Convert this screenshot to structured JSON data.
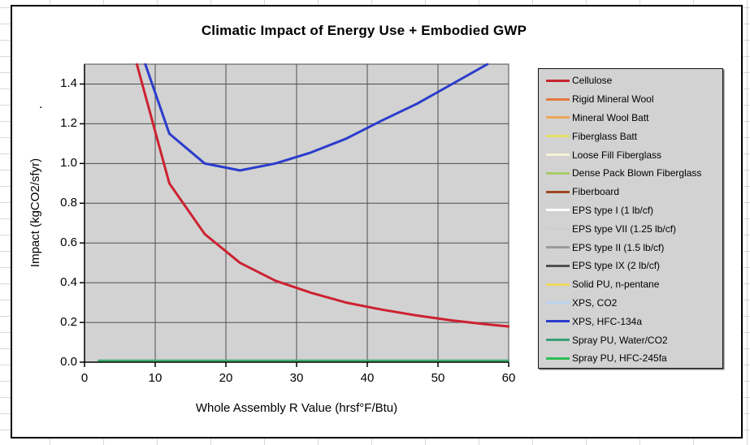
{
  "chart": {
    "title": "Climatic Impact of Energy Use + Embodied GWP",
    "stray_text": ".",
    "x_axis": {
      "title": "Whole Assembly R Value (hrsf°F/Btu)",
      "tick_labels": [
        "0",
        "10",
        "20",
        "30",
        "40",
        "50",
        "60"
      ]
    },
    "y_axis": {
      "title": "Impact  (kgCO2/sfyr)",
      "tick_labels": [
        "0.0",
        "0.2",
        "0.4",
        "0.6",
        "0.8",
        "1.0",
        "1.2",
        "1.4"
      ]
    },
    "colors": {
      "plot_bg": "#d2d2d2",
      "gridline": "#4d4d4d",
      "axis": "#000000"
    }
  },
  "legend": {
    "items": [
      {
        "label": "Cellulose",
        "color": "#c8242e"
      },
      {
        "label": "Rigid Mineral Wool",
        "color": "#e2793c"
      },
      {
        "label": "Mineral Wool Batt",
        "color": "#eca558"
      },
      {
        "label": "Fiberglass Batt",
        "color": "#e6df63"
      },
      {
        "label": "Loose Fill Fiberglass",
        "color": "#f5f3d5"
      },
      {
        "label": "Dense Pack Blown Fiberglass",
        "color": "#abcb68"
      },
      {
        "label": "Fiberboard",
        "color": "#9e4826"
      },
      {
        "label": "EPS type I (1 lb/cf)",
        "color": "#fdfdfd"
      },
      {
        "label": "EPS type VII (1.25 lb/cf)",
        "color": "#cdcdcd"
      },
      {
        "label": "EPS type II (1.5 lb/cf)",
        "color": "#9b9b9b"
      },
      {
        "label": "EPS type IX (2 lb/cf)",
        "color": "#4f4f4f"
      },
      {
        "label": "Solid PU, n-pentane",
        "color": "#ebd95f"
      },
      {
        "label": "XPS, CO2",
        "color": "#b9d3ee"
      },
      {
        "label": "XPS, HFC-134a",
        "color": "#2b3ccc"
      },
      {
        "label": "Spray PU, Water/CO2",
        "color": "#3c9e76"
      },
      {
        "label": "Spray PU, HFC-245fa",
        "color": "#2ebe55"
      }
    ]
  },
  "chart_data": {
    "type": "line",
    "title": "Climatic Impact of Energy Use + Embodied GWP",
    "xlabel": "Whole Assembly R Value (hrsf°F/Btu)",
    "ylabel": "Impact (kgCO2/sfyr)",
    "xlim": [
      0,
      60
    ],
    "ylim": [
      0,
      1.5
    ],
    "x_ticks": [
      0,
      10,
      20,
      30,
      40,
      50,
      60
    ],
    "y_ticks": [
      0,
      0.2,
      0.4,
      0.6,
      0.8,
      1.0,
      1.2,
      1.4
    ],
    "grid": true,
    "legend_position": "right",
    "legend_entries": [
      "Cellulose",
      "Rigid Mineral Wool",
      "Mineral Wool Batt",
      "Fiberglass Batt",
      "Loose Fill Fiberglass",
      "Dense Pack Blown Fiberglass",
      "Fiberboard",
      "EPS type I (1 lb/cf)",
      "EPS type VII (1.25 lb/cf)",
      "EPS type II (1.5 lb/cf)",
      "EPS type IX (2 lb/cf)",
      "Solid PU, n-pentane",
      "XPS, CO2",
      "XPS, HFC-134a",
      "Spray PU, Water/CO2",
      "Spray PU, HFC-245fa"
    ],
    "series": [
      {
        "name": "Cellulose",
        "color": "#cc2231",
        "width": 3,
        "points": [
          [
            7.4,
            1.5
          ],
          [
            12,
            0.9
          ],
          [
            17,
            0.645
          ],
          [
            22,
            0.5
          ],
          [
            27,
            0.41
          ],
          [
            32,
            0.35
          ],
          [
            37,
            0.3
          ],
          [
            42,
            0.265
          ],
          [
            47,
            0.235
          ],
          [
            52,
            0.21
          ],
          [
            57,
            0.19
          ],
          [
            60,
            0.18
          ]
        ]
      },
      {
        "name": "XPS, HFC-134a",
        "color": "#2b3ccc",
        "width": 3,
        "points": [
          [
            8.6,
            1.5
          ],
          [
            12,
            1.15
          ],
          [
            17,
            1.0
          ],
          [
            22,
            0.965
          ],
          [
            27,
            1.0
          ],
          [
            32,
            1.055
          ],
          [
            37,
            1.125
          ],
          [
            42,
            1.215
          ],
          [
            47,
            1.3
          ],
          [
            52,
            1.4
          ],
          [
            57,
            1.5
          ]
        ]
      },
      {
        "name": "Spray PU, HFC-245fa",
        "color": "#3cae6a",
        "width": 2.5,
        "points": [
          [
            2,
            0.008
          ],
          [
            60,
            0.008
          ]
        ]
      }
    ]
  }
}
